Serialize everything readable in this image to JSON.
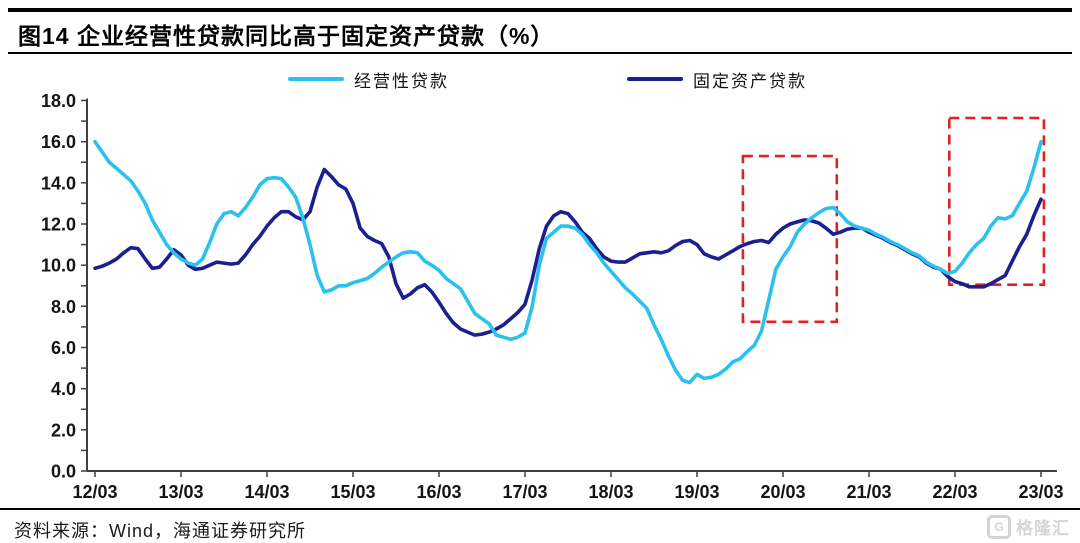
{
  "header": {
    "title": "图14 企业经营性贷款同比高于固定资产贷款（%）"
  },
  "legend": [
    {
      "label": "经营性贷款",
      "color": "#2BC1EE"
    },
    {
      "label": "固定资产贷款",
      "color": "#1B1F8F"
    }
  ],
  "footer": {
    "source": "资料来源：Wind，海通证券研究所"
  },
  "logo": {
    "icon": "G",
    "text": "格隆汇"
  },
  "chart_data": {
    "type": "line",
    "title": "企业经营性贷款同比高于固定资产贷款",
    "unit": "%",
    "freq": "monthly",
    "start": "2012-03",
    "end": "2023-03",
    "x_ticks": [
      "12/03",
      "13/03",
      "14/03",
      "15/03",
      "16/03",
      "17/03",
      "18/03",
      "19/03",
      "20/03",
      "21/03",
      "22/03",
      "23/03"
    ],
    "ylim": [
      0,
      18
    ],
    "y_tick_step": 2,
    "y_minor_step": 1,
    "y_tick_labels": [
      "0.0",
      "2.0",
      "4.0",
      "6.0",
      "8.0",
      "10.0",
      "12.0",
      "14.0",
      "16.0",
      "18.0"
    ],
    "grid": false,
    "legend_position": "top",
    "series": [
      {
        "name": "经营性贷款",
        "color": "#2BC1EE",
        "values": [
          16.0,
          15.5,
          15.0,
          14.7,
          14.4,
          14.1,
          13.6,
          13.0,
          12.2,
          11.6,
          11.0,
          10.6,
          10.3,
          10.1,
          10.0,
          10.3,
          11.1,
          12.0,
          12.5,
          12.6,
          12.4,
          12.8,
          13.3,
          13.9,
          14.2,
          14.25,
          14.2,
          13.8,
          13.3,
          12.3,
          11.0,
          9.5,
          8.7,
          8.8,
          9.0,
          9.0,
          9.15,
          9.25,
          9.35,
          9.6,
          9.9,
          10.15,
          10.4,
          10.6,
          10.65,
          10.6,
          10.2,
          10.0,
          9.75,
          9.35,
          9.1,
          8.85,
          8.25,
          7.65,
          7.4,
          7.15,
          6.6,
          6.5,
          6.4,
          6.5,
          6.7,
          8.0,
          10.0,
          11.3,
          11.6,
          11.9,
          11.9,
          11.8,
          11.5,
          11.0,
          10.6,
          10.1,
          9.7,
          9.3,
          8.9,
          8.6,
          8.25,
          7.9,
          7.1,
          6.4,
          5.6,
          4.9,
          4.4,
          4.3,
          4.7,
          4.5,
          4.55,
          4.7,
          4.95,
          5.3,
          5.45,
          5.8,
          6.1,
          6.8,
          8.3,
          9.8,
          10.4,
          10.9,
          11.6,
          12.0,
          12.3,
          12.55,
          12.75,
          12.8,
          12.5,
          12.1,
          11.9,
          11.8,
          11.7,
          11.5,
          11.35,
          11.15,
          11.0,
          10.8,
          10.6,
          10.45,
          10.15,
          9.95,
          9.8,
          9.6,
          9.7,
          10.1,
          10.6,
          11.0,
          11.3,
          11.9,
          12.3,
          12.25,
          12.4,
          13.0,
          13.6,
          14.7,
          16.0
        ]
      },
      {
        "name": "固定资产贷款",
        "color": "#1B1F8F",
        "values": [
          9.85,
          9.95,
          10.1,
          10.3,
          10.6,
          10.85,
          10.8,
          10.3,
          9.85,
          9.9,
          10.3,
          10.75,
          10.5,
          10.0,
          9.8,
          9.85,
          10.0,
          10.15,
          10.1,
          10.05,
          10.1,
          10.5,
          11.0,
          11.4,
          11.9,
          12.3,
          12.6,
          12.6,
          12.35,
          12.2,
          12.6,
          13.8,
          14.65,
          14.3,
          13.9,
          13.7,
          13.0,
          11.8,
          11.4,
          11.2,
          11.05,
          10.4,
          9.1,
          8.4,
          8.6,
          8.9,
          9.05,
          8.7,
          8.2,
          7.65,
          7.2,
          6.9,
          6.75,
          6.6,
          6.65,
          6.75,
          6.9,
          7.1,
          7.4,
          7.7,
          8.1,
          9.3,
          10.8,
          11.9,
          12.4,
          12.6,
          12.5,
          12.1,
          11.6,
          11.3,
          10.8,
          10.4,
          10.2,
          10.15,
          10.15,
          10.35,
          10.55,
          10.6,
          10.65,
          10.6,
          10.7,
          10.95,
          11.15,
          11.2,
          11.0,
          10.55,
          10.4,
          10.3,
          10.5,
          10.7,
          10.9,
          11.05,
          11.15,
          11.2,
          11.1,
          11.5,
          11.8,
          12.0,
          12.1,
          12.2,
          12.15,
          12.05,
          11.8,
          11.5,
          11.6,
          11.75,
          11.8,
          11.8,
          11.6,
          11.45,
          11.3,
          11.1,
          10.95,
          10.75,
          10.55,
          10.4,
          10.1,
          9.9,
          9.8,
          9.45,
          9.2,
          9.1,
          8.95,
          8.95,
          8.95,
          9.1,
          9.3,
          9.5,
          10.2,
          10.9,
          11.5,
          12.4,
          13.2
        ]
      }
    ],
    "annotations": {
      "highlight_color": "#E02222",
      "boxes": [
        {
          "x1_month": 90.4,
          "x2_month": 103.5,
          "y1": 7.25,
          "y2": 15.3
        },
        {
          "x1_month": 119.2,
          "x2_month": 132.4,
          "y1": 9.05,
          "y2": 17.15
        }
      ]
    }
  }
}
